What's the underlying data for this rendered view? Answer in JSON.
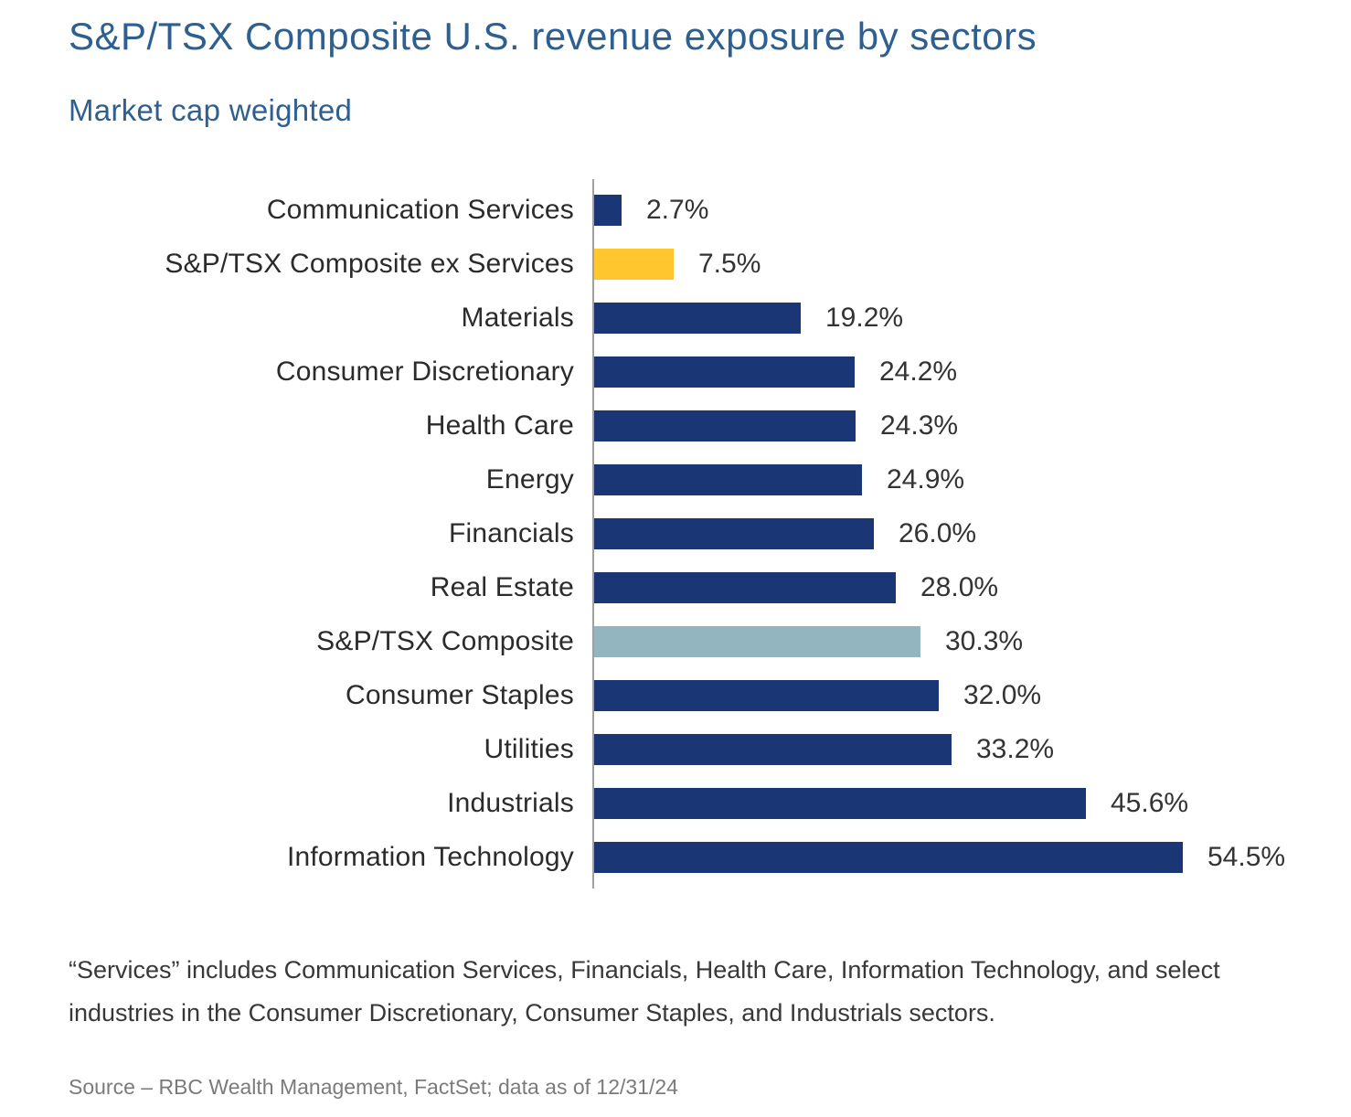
{
  "header": {
    "title": "S&P/TSX Composite U.S. revenue exposure by sectors",
    "subtitle": "Market cap weighted"
  },
  "chart_data": {
    "type": "bar",
    "orientation": "horizontal",
    "title": "S&P/TSX Composite U.S. revenue exposure by sectors",
    "subtitle": "Market cap weighted",
    "xlabel": "",
    "ylabel": "",
    "xlim": [
      0,
      60
    ],
    "grid": false,
    "legend": "none",
    "value_label_position": "end-of-bar",
    "categories": [
      "Communication Services",
      "S&P/TSX Composite ex Services",
      "Materials",
      "Consumer Discretionary",
      "Health Care",
      "Energy",
      "Financials",
      "Real Estate",
      "S&P/TSX Composite",
      "Consumer Staples",
      "Utilities",
      "Industrials",
      "Information Technology"
    ],
    "values": [
      2.7,
      7.5,
      19.2,
      24.2,
      24.3,
      24.9,
      26.0,
      28.0,
      30.3,
      32.0,
      33.2,
      45.6,
      54.5
    ],
    "value_labels": [
      "2.7%",
      "7.5%",
      "19.2%",
      "24.2%",
      "24.3%",
      "24.9%",
      "26.0%",
      "28.0%",
      "30.3%",
      "32.0%",
      "33.2%",
      "45.6%",
      "54.5%"
    ],
    "bar_colors": [
      "#1A3674",
      "#FFC62E",
      "#1A3674",
      "#1A3674",
      "#1A3674",
      "#1A3674",
      "#1A3674",
      "#1A3674",
      "#93B5C0",
      "#1A3674",
      "#1A3674",
      "#1A3674",
      "#1A3674"
    ],
    "colors": {
      "default_bar": "#1A3674",
      "highlight_gold": "#FFC62E",
      "highlight_light_blue": "#93B5C0",
      "title_text": "#2E5F91",
      "axis_line": "#A0A0A0"
    }
  },
  "footnote": "“Services” includes Communication Services, Financials, Health Care, Information Technology, and select industries in the Consumer Discretionary, Consumer Staples, and Industrials sectors.",
  "source": "Source – RBC Wealth Management, FactSet; data as of 12/31/24"
}
